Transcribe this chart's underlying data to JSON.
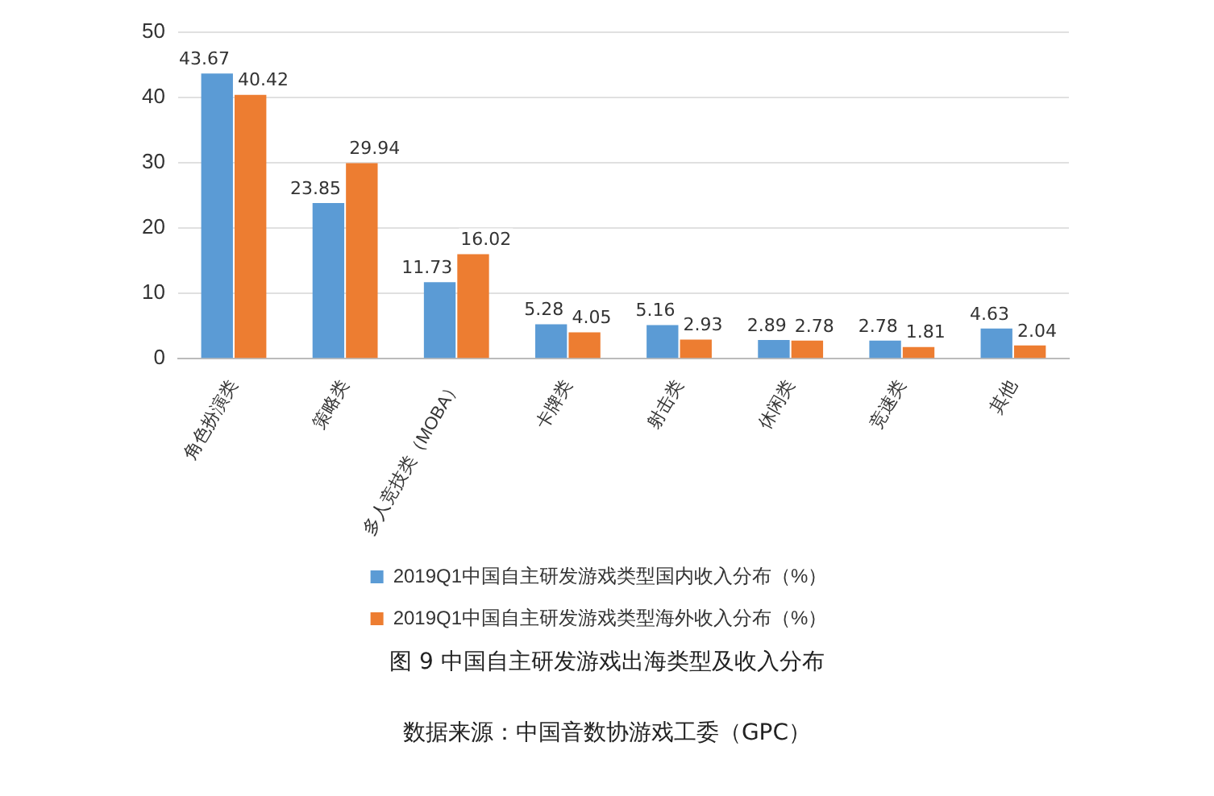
{
  "chart_data": {
    "type": "bar",
    "title": "图 9  中国自主研发游戏出海类型及收入分布",
    "categories": [
      "角色扮演类",
      "策略类",
      "多人竞技类（MOBA）",
      "卡牌类",
      "射击类",
      "休闲类",
      "竞速类",
      "其他"
    ],
    "series": [
      {
        "name": "2019Q1中国自主研发游戏类型国内收入分布（%）",
        "color": "#5b9bd5",
        "values": [
          43.67,
          23.85,
          11.73,
          5.28,
          5.16,
          2.89,
          2.78,
          4.63
        ]
      },
      {
        "name": "2019Q1中国自主研发游戏类型海外收入分布（%）",
        "color": "#ed7d31",
        "values": [
          40.42,
          29.94,
          16.02,
          4.05,
          2.93,
          2.78,
          1.81,
          2.04
        ]
      }
    ],
    "ylim": [
      0,
      50
    ],
    "yticks": [
      0,
      10,
      20,
      30,
      40,
      50
    ],
    "grid": "y",
    "legend": "bottom",
    "data_labels": true,
    "annotations": [
      "数据来源：中国音数协游戏工委（GPC）"
    ]
  }
}
